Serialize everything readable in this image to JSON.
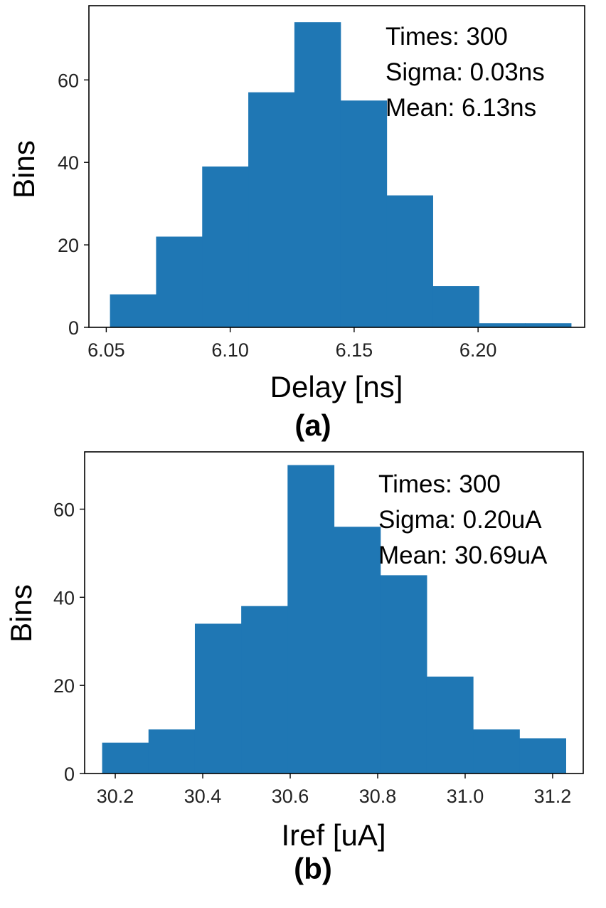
{
  "colors": {
    "bar": "#1f77b4"
  },
  "chart_data": [
    {
      "type": "bar",
      "panel_label": "(a)",
      "xlabel": "Delay [ns]",
      "ylabel": "Bins",
      "xlim": [
        6.043,
        6.243
      ],
      "ylim": [
        0,
        78
      ],
      "xticks": [
        6.05,
        6.1,
        6.15,
        6.2
      ],
      "xtick_labels": [
        "6.05",
        "6.10",
        "6.15",
        "6.20"
      ],
      "yticks": [
        0,
        20,
        40,
        60
      ],
      "ytick_labels": [
        "0",
        "20",
        "40",
        "60"
      ],
      "bin_edges": [
        6.0515,
        6.0701,
        6.0887,
        6.1073,
        6.1259,
        6.1445,
        6.1631,
        6.1817,
        6.2003,
        6.2189,
        6.2375
      ],
      "values": [
        8,
        22,
        39,
        57,
        74,
        55,
        32,
        10,
        1,
        1
      ],
      "annotations": [
        "Times: 300",
        "Sigma: 0.03ns",
        "Mean:  6.13ns"
      ],
      "grid": false
    },
    {
      "type": "bar",
      "panel_label": "(b)",
      "xlabel": "Iref [uA]",
      "ylabel": "Bins",
      "xlim": [
        30.13,
        31.27
      ],
      "ylim": [
        0,
        73
      ],
      "xticks": [
        30.2,
        30.4,
        30.6,
        30.8,
        31.0,
        31.2
      ],
      "xtick_labels": [
        "30.2",
        "30.4",
        "30.6",
        "30.8",
        "31.0",
        "31.2"
      ],
      "yticks": [
        0,
        20,
        40,
        60
      ],
      "ytick_labels": [
        "0",
        "20",
        "40",
        "60"
      ],
      "bin_edges": [
        30.17,
        30.276,
        30.382,
        30.488,
        30.594,
        30.7,
        30.806,
        30.912,
        31.018,
        31.124,
        31.23
      ],
      "values": [
        7,
        10,
        34,
        38,
        70,
        56,
        45,
        22,
        10,
        8
      ],
      "annotations": [
        "Times: 300",
        "Sigma: 0.20uA",
        "Mean:  30.69uA"
      ],
      "grid": false
    }
  ]
}
